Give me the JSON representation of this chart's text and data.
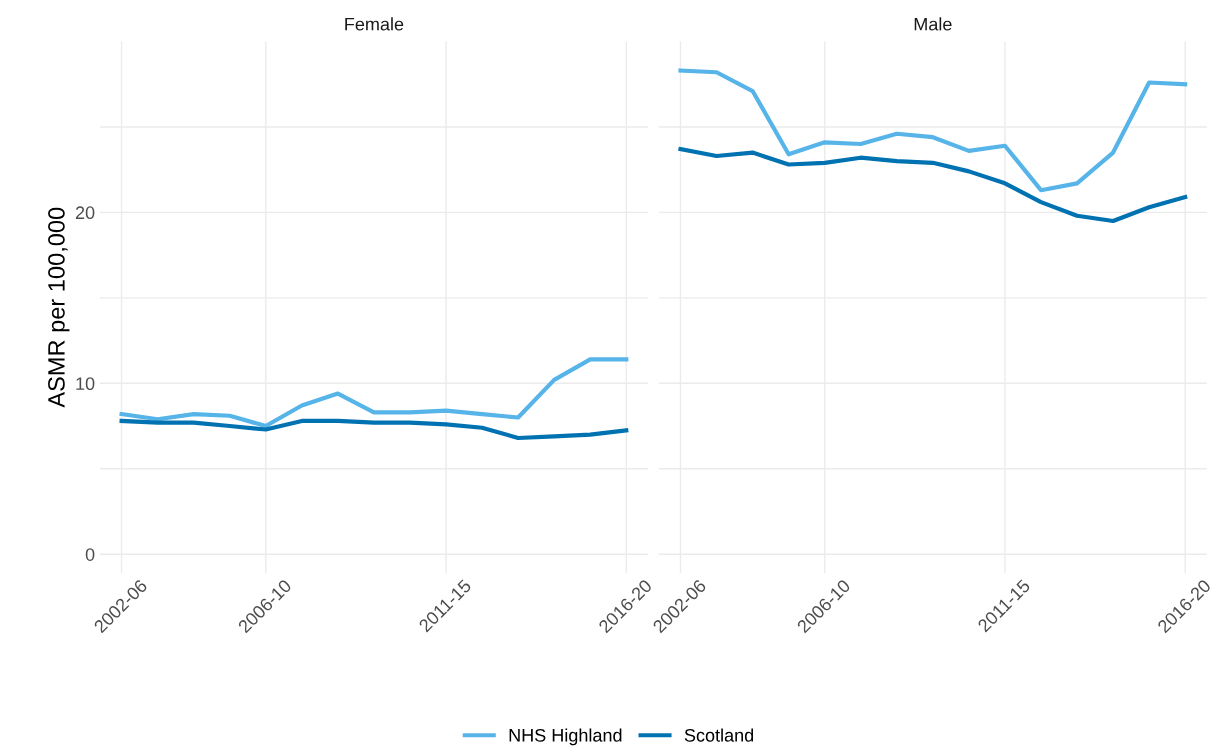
{
  "chart_data": [
    {
      "type": "line",
      "title": "Female",
      "ylabel": "ASMR per 100,000",
      "categories": [
        "2002-06",
        null,
        null,
        null,
        "2006-10",
        null,
        null,
        null,
        null,
        "2011-15",
        null,
        null,
        null,
        null,
        "2016-20"
      ],
      "series": [
        {
          "name": "NHS Highland",
          "color": "#56b4e9",
          "values": [
            8.2,
            7.9,
            8.2,
            8.1,
            7.5,
            8.7,
            9.4,
            8.3,
            8.3,
            8.4,
            8.2,
            8.0,
            10.2,
            11.4,
            11.4
          ]
        },
        {
          "name": "Scotland",
          "color": "#0072b2",
          "values": [
            7.8,
            7.7,
            7.7,
            7.5,
            7.3,
            7.8,
            7.8,
            7.7,
            7.7,
            7.6,
            7.4,
            6.8,
            6.9,
            7.0,
            7.25
          ]
        }
      ],
      "ylim": [
        -1.1,
        30
      ],
      "yticks": [
        0,
        {
          "value": 5,
          "label": null
        },
        10,
        {
          "value": 15,
          "label": null
        },
        20,
        {
          "value": 25,
          "label": null
        }
      ],
      "grid": true,
      "legend": "bottom",
      "line_style": "solid",
      "marker": "none"
    },
    {
      "type": "line",
      "title": "Male",
      "categories": [
        "2002-06",
        null,
        null,
        null,
        "2006-10",
        null,
        null,
        null,
        null,
        "2011-15",
        null,
        null,
        null,
        null,
        "2016-20"
      ],
      "series": [
        {
          "color": "#56b4e9",
          "values": [
            28.3,
            28.2,
            27.1,
            23.4,
            24.1,
            24.0,
            24.6,
            24.4,
            23.6,
            23.9,
            21.3,
            21.7,
            23.5,
            27.6,
            27.5
          ]
        },
        {
          "color": "#0072b2",
          "values": [
            23.7,
            23.3,
            23.5,
            22.8,
            22.9,
            23.2,
            23.0,
            22.9,
            22.4,
            21.7,
            20.6,
            19.8,
            19.5,
            20.3,
            20.9
          ]
        }
      ],
      "ylim": [
        -1.1,
        30
      ],
      "yticks": [
        0,
        {
          "value": 5,
          "label": null
        },
        10,
        {
          "value": 15,
          "label": null
        },
        20,
        {
          "value": 25,
          "label": null
        }
      ],
      "tick_labels": "x",
      "grid": true,
      "line_style": "solid",
      "marker": "none"
    }
  ]
}
